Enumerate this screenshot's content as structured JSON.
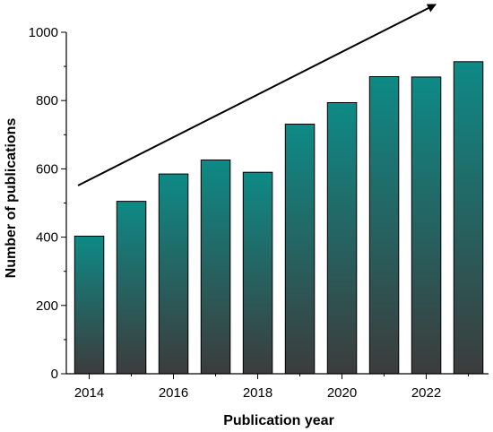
{
  "chart_data": {
    "type": "bar",
    "title": "",
    "xlabel": "Publication year",
    "ylabel": "Number of publications",
    "categories": [
      "2014",
      "2015",
      "2016",
      "2017",
      "2018",
      "2019",
      "2020",
      "2021",
      "2022",
      "2023"
    ],
    "values": [
      403,
      505,
      585,
      626,
      590,
      731,
      794,
      870,
      869,
      914
    ],
    "ylim": [
      0,
      1000
    ],
    "yticks": [
      0,
      200,
      400,
      600,
      800,
      1000
    ],
    "xtick_labels": [
      "2014",
      "2016",
      "2018",
      "2020",
      "2022"
    ],
    "grid": false,
    "annotation": "upward trend arrow",
    "colors": {
      "bar_top": "#0e8a86",
      "bar_bottom": "#3c3c3c",
      "bar_edge": "#000000"
    }
  }
}
